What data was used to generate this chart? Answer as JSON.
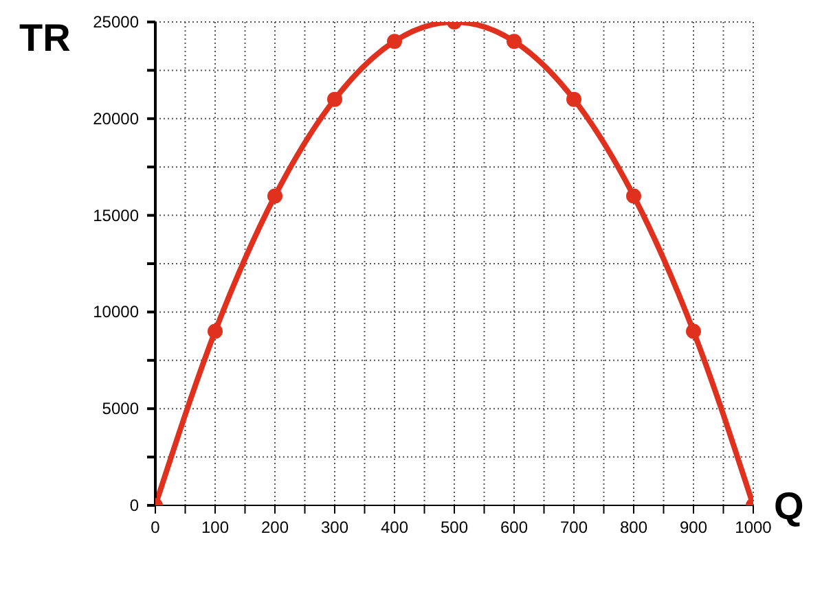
{
  "chart_data": {
    "type": "line",
    "xlabel": "Q",
    "ylabel": "TR",
    "x": [
      0,
      100,
      200,
      300,
      400,
      500,
      600,
      700,
      800,
      900,
      1000
    ],
    "series": [
      {
        "color": "#e0301e",
        "values": [
          0,
          9000,
          16000,
          21000,
          24000,
          25000,
          24000,
          21000,
          16000,
          9000,
          0
        ]
      }
    ],
    "xlim": [
      0,
      1000
    ],
    "xticks": [
      0,
      {
        "value": 50,
        "label": null
      },
      100,
      {
        "value": 150,
        "label": null
      },
      200,
      {
        "value": 250,
        "label": null
      },
      300,
      {
        "value": 350,
        "label": null
      },
      400,
      {
        "value": 450,
        "label": null
      },
      500,
      {
        "value": 550,
        "label": null
      },
      600,
      {
        "value": 650,
        "label": null
      },
      700,
      {
        "value": 750,
        "label": null
      },
      800,
      {
        "value": 850,
        "label": null
      },
      900,
      {
        "value": 950,
        "label": null
      },
      1000
    ],
    "ylim": [
      0,
      25000
    ],
    "yticks": [
      0,
      {
        "value": 2500,
        "label": null
      },
      5000,
      {
        "value": 7500,
        "label": null
      },
      10000,
      {
        "value": 12500,
        "label": null
      },
      15000,
      {
        "value": 17500,
        "label": null
      },
      20000,
      {
        "value": 22500,
        "label": null
      },
      25000
    ],
    "grid": true,
    "marker": "circle",
    "line_style": "solid"
  }
}
